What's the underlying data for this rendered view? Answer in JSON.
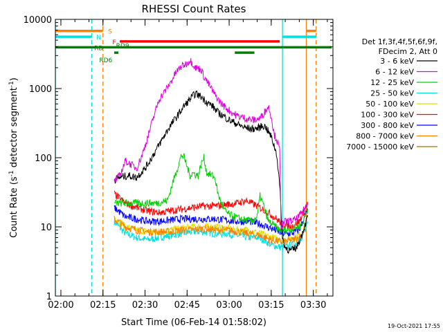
{
  "chart_data": {
    "type": "line",
    "title": "RHESSI Count Rates",
    "xlabel": "Start Time (06-Feb-14 01:58:02)",
    "ylabel": "Count Rate (s^-1 detector segment^-1)",
    "ylabel_main": "Count Rate (s",
    "ylabel_sup1": "-1",
    "ylabel_mid": " detector segment",
    "ylabel_sup2": "-1",
    "ylabel_end": ")",
    "yscale": "log",
    "ylim": [
      1,
      10000
    ],
    "xlim": [
      "01:58:02",
      "03:37:00"
    ],
    "x_ticks": [
      "02:00",
      "02:15",
      "02:30",
      "02:45",
      "03:00",
      "03:15",
      "03:30"
    ],
    "y_ticks": [
      "1",
      "10",
      "100",
      "1000",
      "10000"
    ],
    "footer_date": "19-Oct-2021 17:55",
    "legend_header": [
      "Det 1f,3f,4f,5f,6f,9f,",
      "FDecim 2, Att 0"
    ],
    "legend_position": "right",
    "series": [
      {
        "name": "3 - 6 keV",
        "color": "#000000",
        "points": [
          [
            "02:19",
            48
          ],
          [
            "02:21",
            52
          ],
          [
            "02:24",
            55
          ],
          [
            "02:27",
            52
          ],
          [
            "02:30",
            70
          ],
          [
            "02:32",
            95
          ],
          [
            "02:34",
            130
          ],
          [
            "02:36",
            180
          ],
          [
            "02:38",
            250
          ],
          [
            "02:40",
            330
          ],
          [
            "02:42",
            430
          ],
          [
            "02:44",
            560
          ],
          [
            "02:46",
            700
          ],
          [
            "02:48",
            850
          ],
          [
            "02:50",
            760
          ],
          [
            "02:52",
            640
          ],
          [
            "02:54",
            560
          ],
          [
            "02:56",
            450
          ],
          [
            "02:58",
            400
          ],
          [
            "03:00",
            350
          ],
          [
            "03:02",
            320
          ],
          [
            "03:04",
            290
          ],
          [
            "03:06",
            270
          ],
          [
            "03:08",
            260
          ],
          [
            "03:10",
            265
          ],
          [
            "03:12",
            290
          ],
          [
            "03:13",
            280
          ],
          [
            "03:15",
            200
          ],
          [
            "03:16",
            150
          ],
          [
            "03:17",
            110
          ],
          [
            "03:18",
            40
          ],
          [
            "03:19",
            7
          ],
          [
            "03:20",
            5
          ],
          [
            "03:22",
            4.5
          ],
          [
            "03:24",
            5
          ],
          [
            "03:26",
            8
          ],
          [
            "03:28",
            14
          ]
        ]
      },
      {
        "name": "6 - 12 keV",
        "color": "#e000e0",
        "points": [
          [
            "02:19",
            45
          ],
          [
            "02:21",
            55
          ],
          [
            "02:23",
            90
          ],
          [
            "02:25",
            80
          ],
          [
            "02:27",
            70
          ],
          [
            "02:29",
            110
          ],
          [
            "02:31",
            200
          ],
          [
            "02:33",
            380
          ],
          [
            "02:35",
            700
          ],
          [
            "02:37",
            900
          ],
          [
            "02:39",
            1200
          ],
          [
            "02:41",
            1700
          ],
          [
            "02:43",
            2100
          ],
          [
            "02:45",
            2300
          ],
          [
            "02:46",
            2600
          ],
          [
            "02:48",
            2000
          ],
          [
            "02:50",
            1900
          ],
          [
            "02:51",
            1500
          ],
          [
            "02:53",
            1100
          ],
          [
            "02:55",
            800
          ],
          [
            "02:57",
            620
          ],
          [
            "02:59",
            520
          ],
          [
            "03:01",
            450
          ],
          [
            "03:03",
            400
          ],
          [
            "03:05",
            380
          ],
          [
            "03:07",
            360
          ],
          [
            "03:09",
            350
          ],
          [
            "03:11",
            370
          ],
          [
            "03:13",
            480
          ],
          [
            "03:14",
            550
          ],
          [
            "03:15",
            400
          ],
          [
            "03:16",
            220
          ],
          [
            "03:17",
            180
          ],
          [
            "03:18",
            130
          ],
          [
            "03:18.5",
            10
          ],
          [
            "03:20",
            12
          ],
          [
            "03:22",
            12
          ],
          [
            "03:24",
            13
          ],
          [
            "03:26",
            16
          ],
          [
            "03:28",
            22
          ]
        ]
      },
      {
        "name": "12 - 25 keV",
        "color": "#00d000",
        "points": [
          [
            "02:19",
            22
          ],
          [
            "02:24",
            22
          ],
          [
            "02:29",
            22
          ],
          [
            "02:34",
            22
          ],
          [
            "02:38",
            24
          ],
          [
            "02:40",
            45
          ],
          [
            "02:42",
            80
          ],
          [
            "02:43",
            110
          ],
          [
            "02:44",
            100
          ],
          [
            "02:46",
            55
          ],
          [
            "02:47",
            60
          ],
          [
            "02:49",
            55
          ],
          [
            "02:50",
            80
          ],
          [
            "02:51",
            100
          ],
          [
            "02:52",
            60
          ],
          [
            "02:54",
            55
          ],
          [
            "02:55",
            50
          ],
          [
            "02:56",
            30
          ],
          [
            "02:58",
            18
          ],
          [
            "03:00",
            15
          ],
          [
            "03:04",
            13
          ],
          [
            "03:08",
            12
          ],
          [
            "03:10",
            14
          ],
          [
            "03:11",
            28
          ],
          [
            "03:12",
            22
          ],
          [
            "03:14",
            12
          ],
          [
            "03:18",
            9
          ],
          [
            "03:22",
            9
          ],
          [
            "03:26",
            11
          ],
          [
            "03:28",
            18
          ]
        ]
      },
      {
        "name": "25 - 50 keV",
        "color": "#00e0e0",
        "points": [
          [
            "02:19",
            12
          ],
          [
            "02:23",
            8
          ],
          [
            "02:27",
            7
          ],
          [
            "02:31",
            6.5
          ],
          [
            "02:35",
            7
          ],
          [
            "02:39",
            7.5
          ],
          [
            "02:43",
            8
          ],
          [
            "02:47",
            8.5
          ],
          [
            "02:51",
            8.5
          ],
          [
            "02:55",
            8
          ],
          [
            "02:59",
            8
          ],
          [
            "03:03",
            7.5
          ],
          [
            "03:07",
            7
          ],
          [
            "03:11",
            7
          ],
          [
            "03:15",
            5.5
          ],
          [
            "03:19",
            5
          ],
          [
            "03:23",
            5.5
          ],
          [
            "03:26",
            6.5
          ],
          [
            "03:28",
            12
          ]
        ]
      },
      {
        "name": "50 - 100 keV",
        "color": "#e0e000",
        "points": [
          [
            "02:19",
            14
          ],
          [
            "02:23",
            10
          ],
          [
            "02:27",
            9
          ],
          [
            "02:31",
            8.5
          ],
          [
            "02:35",
            8.5
          ],
          [
            "02:39",
            9
          ],
          [
            "02:43",
            9.5
          ],
          [
            "02:47",
            10
          ],
          [
            "02:51",
            10
          ],
          [
            "02:55",
            10
          ],
          [
            "02:59",
            9.5
          ],
          [
            "03:03",
            9
          ],
          [
            "03:07",
            9
          ],
          [
            "03:11",
            8
          ],
          [
            "03:15",
            7
          ],
          [
            "03:19",
            6.5
          ],
          [
            "03:23",
            7
          ],
          [
            "03:26",
            8
          ],
          [
            "03:28",
            14
          ]
        ]
      },
      {
        "name": "100 - 300 keV",
        "color": "#ff0000",
        "points": [
          [
            "02:19",
            30
          ],
          [
            "02:23",
            22
          ],
          [
            "02:27",
            19
          ],
          [
            "02:31",
            17
          ],
          [
            "02:35",
            16
          ],
          [
            "02:39",
            17
          ],
          [
            "02:43",
            18
          ],
          [
            "02:47",
            19
          ],
          [
            "02:51",
            20
          ],
          [
            "02:55",
            20
          ],
          [
            "02:59",
            21
          ],
          [
            "03:03",
            22
          ],
          [
            "03:06",
            24
          ],
          [
            "03:09",
            21
          ],
          [
            "03:12",
            18
          ],
          [
            "03:15",
            15
          ],
          [
            "03:19",
            11
          ],
          [
            "03:22",
            10
          ],
          [
            "03:25",
            12
          ],
          [
            "03:28",
            22
          ]
        ]
      },
      {
        "name": "300 - 800 keV",
        "color": "#0000ff",
        "points": [
          [
            "02:19",
            19
          ],
          [
            "02:23",
            14
          ],
          [
            "02:27",
            13
          ],
          [
            "02:31",
            12
          ],
          [
            "02:35",
            12
          ],
          [
            "02:39",
            12.5
          ],
          [
            "02:43",
            13
          ],
          [
            "02:47",
            13
          ],
          [
            "02:51",
            13
          ],
          [
            "02:55",
            13
          ],
          [
            "02:59",
            12.5
          ],
          [
            "03:03",
            12
          ],
          [
            "03:07",
            12
          ],
          [
            "03:11",
            11
          ],
          [
            "03:15",
            9.5
          ],
          [
            "03:19",
            8
          ],
          [
            "03:22",
            8
          ],
          [
            "03:25",
            9
          ],
          [
            "03:28",
            18
          ]
        ]
      },
      {
        "name": "800 - 7000 keV",
        "color": "#ff8000",
        "points": [
          [
            "02:19",
            13
          ],
          [
            "02:23",
            10
          ],
          [
            "02:27",
            9
          ],
          [
            "02:31",
            8.5
          ],
          [
            "02:35",
            8.5
          ],
          [
            "02:39",
            8.5
          ],
          [
            "02:43",
            9
          ],
          [
            "02:47",
            9
          ],
          [
            "02:51",
            9.5
          ],
          [
            "02:55",
            9
          ],
          [
            "02:59",
            9
          ],
          [
            "03:03",
            8.5
          ],
          [
            "03:07",
            8
          ],
          [
            "03:11",
            7.5
          ],
          [
            "03:15",
            6.5
          ],
          [
            "03:19",
            6
          ],
          [
            "03:23",
            6.5
          ],
          [
            "03:26",
            7.5
          ],
          [
            "03:28",
            14
          ]
        ]
      },
      {
        "name": "7000 - 15000 keV",
        "color": "#a07000",
        "points": []
      }
    ],
    "state_bars": [
      {
        "label": "S",
        "color": "#ff8000",
        "label_at": "02:17:30",
        "level": 6800,
        "segments": [
          [
            "01:58:02",
            "02:15"
          ],
          [
            "03:27:30",
            "03:31"
          ]
        ]
      },
      {
        "label": "N",
        "color": "#00e0e0",
        "label_at": "02:13:30",
        "level": 5600,
        "segments": [
          [
            "01:58:02",
            "02:11"
          ],
          [
            "03:19",
            "03:31"
          ]
        ]
      },
      {
        "label": "F",
        "color": "#ff0000",
        "label_at": "02:19",
        "level": 4800,
        "segments": [
          [
            "02:21",
            "03:18"
          ]
        ]
      },
      {
        "label": "RD",
        "color": "#008000",
        "label_at": "02:13:30",
        "level": 3950,
        "segments": [
          [
            "01:58:02",
            "03:36:30"
          ]
        ]
      },
      {
        "label": "RD6",
        "color": "#008000",
        "label_at": "02:16",
        "level": 3300,
        "segments": [
          [
            "02:19",
            "02:20:30"
          ],
          [
            "03:02",
            "03:09"
          ]
        ]
      },
      {
        "label": "RD9",
        "color": "#008000",
        "label_at": "02:22",
        "level": 4250,
        "segments": []
      }
    ],
    "vertical_markers": [
      {
        "color": "#00e0e0",
        "style": "solid",
        "at": "01:58:02"
      },
      {
        "color": "#00e0e0",
        "style": "dashed",
        "at": "02:11"
      },
      {
        "color": "#ff8000",
        "style": "dashed",
        "at": "02:15"
      },
      {
        "color": "#00e0e0",
        "style": "solid",
        "at": "03:19"
      },
      {
        "color": "#ff8000",
        "style": "solid",
        "at": "03:27:30"
      },
      {
        "color": "#ff8000",
        "style": "dashed",
        "at": "03:31"
      }
    ]
  }
}
